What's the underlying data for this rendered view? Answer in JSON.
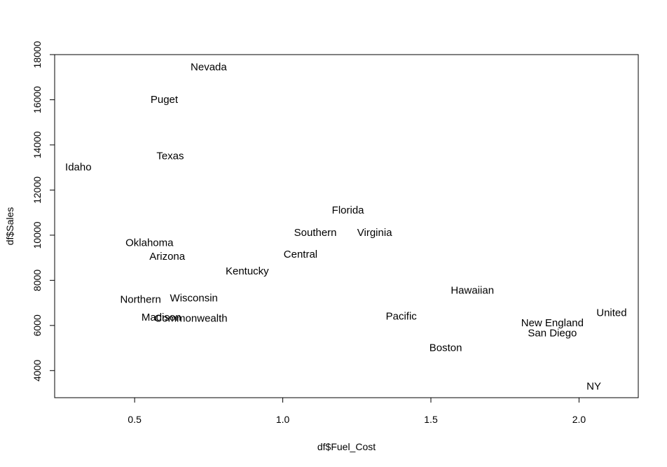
{
  "chart_data": {
    "type": "scatter",
    "title": "",
    "xlabel": "df$Fuel_Cost",
    "ylabel": "df$Sales",
    "xlim": [
      0.23,
      2.2
    ],
    "ylim": [
      2800,
      18000
    ],
    "xticks": [
      "0.5",
      "1.0",
      "1.5",
      "2.0"
    ],
    "xtick_values": [
      0.5,
      1.0,
      1.5,
      2.0
    ],
    "yticks": [
      "4000",
      "6000",
      "8000",
      "10000",
      "12000",
      "14000",
      "16000",
      "18000"
    ],
    "ytick_values": [
      4000,
      6000,
      8000,
      10000,
      12000,
      14000,
      16000,
      18000
    ],
    "grid": false,
    "marker": "text-label",
    "points": [
      {
        "label": "Nevada",
        "x": 0.75,
        "y": 17441
      },
      {
        "label": "Puget",
        "x": 0.6,
        "y": 16000
      },
      {
        "label": "Texas",
        "x": 0.62,
        "y": 13500
      },
      {
        "label": "Idaho",
        "x": 0.31,
        "y": 13000
      },
      {
        "label": "Florida",
        "x": 1.22,
        "y": 11100
      },
      {
        "label": "Southern",
        "x": 1.11,
        "y": 10100
      },
      {
        "label": "Virginia",
        "x": 1.31,
        "y": 10100
      },
      {
        "label": "Oklahoma",
        "x": 0.55,
        "y": 9650
      },
      {
        "label": "Arizona",
        "x": 0.61,
        "y": 9050
      },
      {
        "label": "Central",
        "x": 1.06,
        "y": 9150
      },
      {
        "label": "Kentucky",
        "x": 0.88,
        "y": 8400
      },
      {
        "label": "Hawaiian",
        "x": 1.64,
        "y": 7550
      },
      {
        "label": "Northern",
        "x": 0.52,
        "y": 7150
      },
      {
        "label": "Wisconsin",
        "x": 0.7,
        "y": 7200
      },
      {
        "label": "United",
        "x": 2.11,
        "y": 6550
      },
      {
        "label": "Madison",
        "x": 0.59,
        "y": 6350
      },
      {
        "label": "Commonwealth",
        "x": 0.69,
        "y": 6300
      },
      {
        "label": "Pacific",
        "x": 1.4,
        "y": 6400
      },
      {
        "label": "New England",
        "x": 1.91,
        "y": 6100
      },
      {
        "label": "San Diego",
        "x": 1.91,
        "y": 5650
      },
      {
        "label": "Boston",
        "x": 1.55,
        "y": 5000
      },
      {
        "label": "NY",
        "x": 2.05,
        "y": 3300
      }
    ]
  }
}
